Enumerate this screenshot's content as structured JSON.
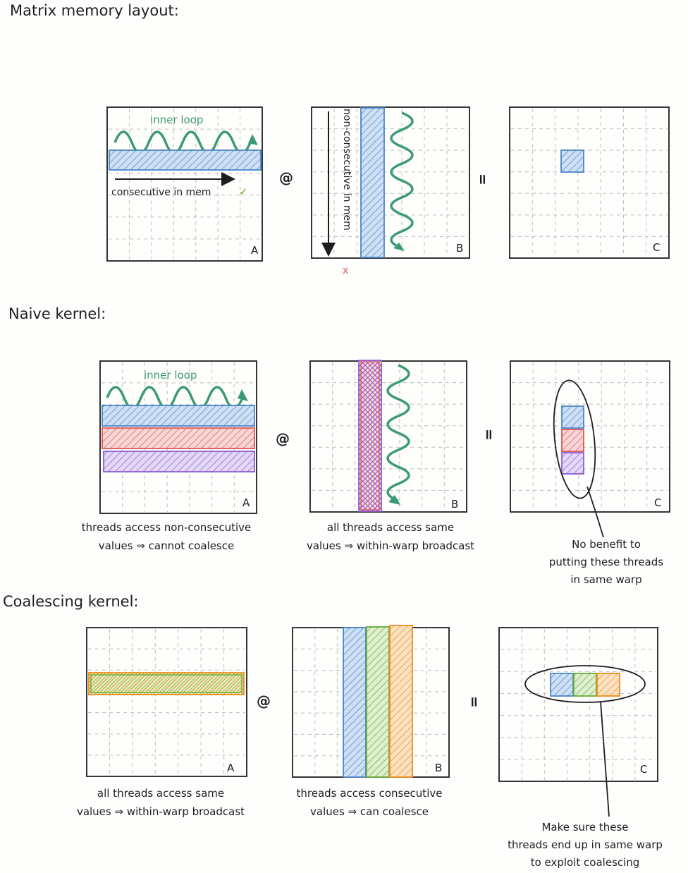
{
  "sections": [
    {
      "title": "Matrix memory layout:"
    },
    {
      "title": "Naive kernel:"
    },
    {
      "title": "Coalescing kernel:"
    }
  ],
  "ops": {
    "matmul": "@",
    "equals": "="
  },
  "matrix_labels": {
    "a": "A",
    "b": "B",
    "c": "C"
  },
  "layout": {
    "inner_loop_a": "inner loop",
    "consecutive": "consecutive in mem",
    "check_mark": "✓",
    "non_consecutive": "non-consecutive in mem",
    "cross_mark": "x"
  },
  "naive": {
    "inner_loop_a": "inner loop",
    "caption_a": [
      "threads access non-consecutive",
      "values ⇒ cannot coalesce"
    ],
    "caption_b": [
      "all threads access same",
      "values ⇒ within-warp broadcast"
    ],
    "note_c": [
      "No benefit to",
      "putting these threads",
      "in same warp"
    ]
  },
  "coalescing": {
    "caption_a": [
      "all threads access same",
      "values ⇒ within-warp broadcast"
    ],
    "caption_b": [
      "threads access consecutive",
      "values ⇒ can coalesce"
    ],
    "note_c": [
      "Make sure these",
      "threads end up in same warp",
      "to exploit coalescing"
    ]
  },
  "colors": {
    "blue": "#4a86c8",
    "blue_fill": "#a9c9ec",
    "red": "#e05555",
    "purple": "#8b5fd1",
    "green": "#6aaa3a",
    "orange": "#f08c1a",
    "teal": "#3a9a74",
    "grid": "#bdbdbd",
    "ink": "#1e1e1e"
  }
}
